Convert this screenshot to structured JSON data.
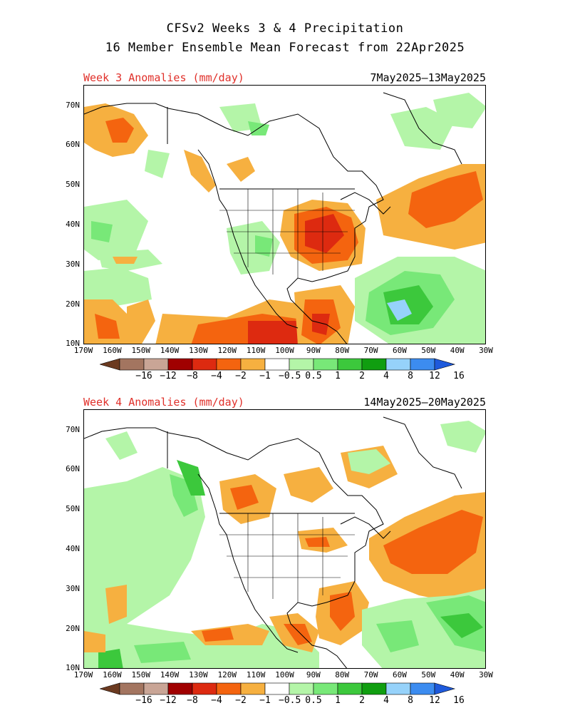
{
  "header": {
    "title": "CFSv2 Weeks 3 & 4 Precipitation",
    "subtitle": "16 Member Ensemble Mean Forecast from 22Apr2025"
  },
  "panels": [
    {
      "label": "Week 3 Anomalies (mm/day)",
      "dates": "7May2025–13May2025",
      "lat_labels": [
        "70N",
        "60N",
        "50N",
        "40N",
        "30N",
        "20N",
        "10N"
      ],
      "lon_labels": [
        "170W",
        "160W",
        "150W",
        "140W",
        "130W",
        "120W",
        "110W",
        "100W",
        "90W",
        "80W",
        "70W",
        "60W",
        "50W",
        "40W",
        "30W"
      ],
      "colorbar_labels": [
        "−16",
        "−12",
        "−8",
        "−4",
        "−2",
        "−1",
        "−0.5",
        "0.5",
        "1",
        "2",
        "4",
        "8",
        "12",
        "16"
      ]
    },
    {
      "label": "Week 4 Anomalies (mm/day)",
      "dates": "14May2025–20May2025",
      "lat_labels": [
        "70N",
        "60N",
        "50N",
        "40N",
        "30N",
        "20N",
        "10N"
      ],
      "lon_labels": [
        "170W",
        "160W",
        "150W",
        "140W",
        "130W",
        "120W",
        "110W",
        "100W",
        "90W",
        "80W",
        "70W",
        "60W",
        "50W",
        "40W",
        "30W"
      ],
      "colorbar_labels": [
        "−16",
        "−12",
        "−8",
        "−4",
        "−2",
        "−1",
        "−0.5",
        "0.5",
        "1",
        "2",
        "4",
        "8",
        "12",
        "16"
      ]
    }
  ],
  "colorbar_colors": [
    "#6b3a20",
    "#a37560",
    "#c9a596",
    "#a00000",
    "#dd2a10",
    "#f4640f",
    "#f6b040",
    "#ffffff",
    "#b4f5a8",
    "#78e878",
    "#3cc83c",
    "#109e10",
    "#96d2fa",
    "#3c8cf0",
    "#1e5adc"
  ],
  "colors": {
    "dry_light": "#f6b040",
    "dry_mid": "#f4640f",
    "dry_strong": "#dd2a10",
    "wet_light": "#b4f5a8",
    "wet_mid": "#78e878",
    "wet_strong": "#3cc83c",
    "wet_heavy": "#96d2fa",
    "title_accent": "#e0302a"
  }
}
